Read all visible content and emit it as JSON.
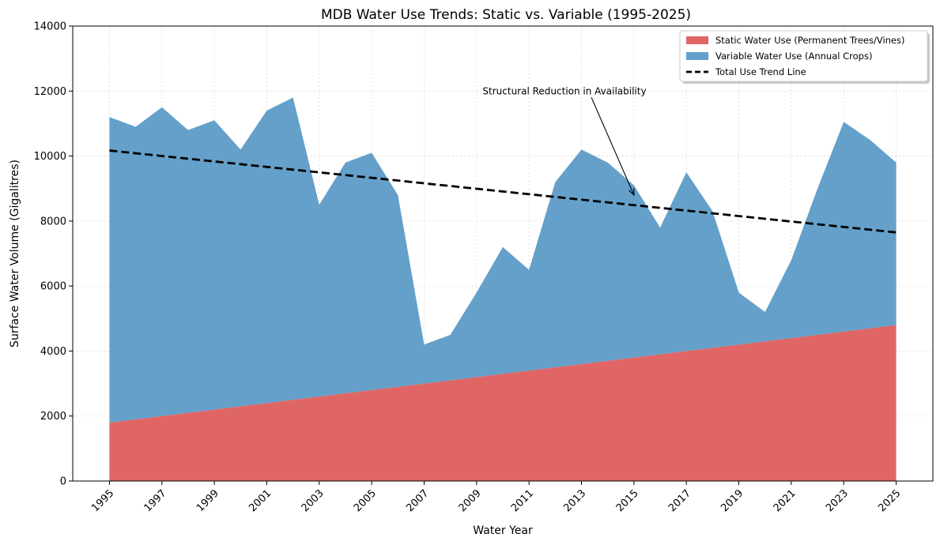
{
  "chart_data": {
    "type": "area",
    "stacked": true,
    "title": "MDB Water Use Trends: Static vs. Variable (1995-2025)",
    "xlabel": "Water Year",
    "ylabel": "Surface Water Volume (Gigalitres)",
    "xlim": [
      1993.6,
      2026.4
    ],
    "ylim": [
      0,
      14000
    ],
    "x_ticks": [
      1995,
      1997,
      1999,
      2001,
      2003,
      2005,
      2007,
      2009,
      2011,
      2013,
      2015,
      2017,
      2019,
      2021,
      2023,
      2025
    ],
    "y_ticks": [
      0,
      2000,
      4000,
      6000,
      8000,
      10000,
      12000,
      14000
    ],
    "grid": true,
    "legend_position": "top-right",
    "x": [
      1995,
      1996,
      1997,
      1998,
      1999,
      2000,
      2001,
      2002,
      2003,
      2004,
      2005,
      2006,
      2007,
      2008,
      2009,
      2010,
      2011,
      2012,
      2013,
      2014,
      2015,
      2016,
      2017,
      2018,
      2019,
      2020,
      2021,
      2022,
      2023,
      2024,
      2025
    ],
    "series": [
      {
        "name": "Static Water Use (Permanent Trees/Vines)",
        "color": "#e06666",
        "values": [
          1800,
          1900,
          2000,
          2100,
          2200,
          2300,
          2400,
          2500,
          2600,
          2700,
          2800,
          2900,
          3000,
          3100,
          3200,
          3300,
          3400,
          3500,
          3600,
          3700,
          3800,
          3900,
          4000,
          4100,
          4200,
          4300,
          4400,
          4500,
          4600,
          4700,
          4800
        ]
      },
      {
        "name": "Variable Water Use (Annual Crops)",
        "color": "#64a0ca",
        "values": [
          9400,
          9000,
          9500,
          8700,
          8900,
          7900,
          9000,
          9300,
          5900,
          7100,
          7300,
          5900,
          1200,
          1400,
          2600,
          3900,
          3100,
          5700,
          6600,
          6100,
          5300,
          3900,
          5500,
          4200,
          1600,
          900,
          2400,
          4500,
          6450,
          5800,
          5000
        ]
      }
    ],
    "trend_line": {
      "name": "Total Use Trend Line",
      "color": "#000000",
      "start": {
        "x": 1995,
        "y": 10170
      },
      "end": {
        "x": 2025,
        "y": 7650
      }
    },
    "annotation": {
      "text": "Structural Reduction in Availability",
      "text_at": {
        "x": 2010,
        "y": 12000
      },
      "arrow_to": {
        "x": 2015,
        "y": 8800
      }
    }
  }
}
